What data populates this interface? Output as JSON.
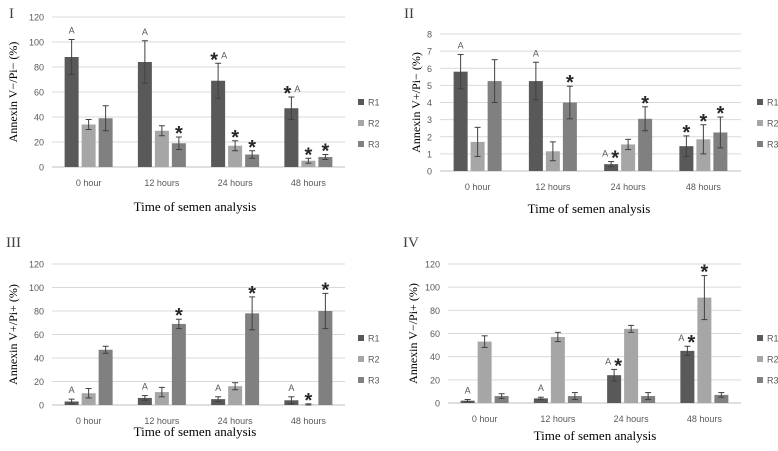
{
  "colors": {
    "R1": "#595959",
    "R2": "#a6a6a6",
    "R3": "#808080",
    "grid": "#d9d9d9",
    "axis": "#bfbfbf",
    "error": "#404040",
    "tick": "#595959"
  },
  "chart_data": [
    {
      "type": "bar",
      "panel": "I",
      "title": "",
      "xlabel": "Time of semen analysis",
      "ylabel": "Annexin V−/Pi− (%)",
      "ylim": [
        0,
        120
      ],
      "yticks": [
        0,
        20,
        40,
        60,
        80,
        100,
        120
      ],
      "grid": true,
      "legend_position": "right",
      "categories": [
        "0 hour",
        "12 hours",
        "24 hours",
        "48 hours"
      ],
      "series": [
        {
          "name": "R1",
          "values": [
            88,
            84,
            69,
            47
          ],
          "errors": [
            14,
            17,
            14,
            9
          ]
        },
        {
          "name": "R2",
          "values": [
            34,
            29,
            17,
            5
          ],
          "errors": [
            4,
            4,
            4,
            2
          ]
        },
        {
          "name": "R3",
          "values": [
            39,
            19,
            10,
            8
          ],
          "errors": [
            10,
            5,
            3,
            2
          ]
        }
      ],
      "annotations": [
        {
          "category": 0,
          "series": 0,
          "label": "A"
        },
        {
          "category": 1,
          "series": 0,
          "label": "A"
        },
        {
          "category": 1,
          "series": 2,
          "label": "*"
        },
        {
          "category": 2,
          "series": 0,
          "label": "*A"
        },
        {
          "category": 2,
          "series": 1,
          "label": "*"
        },
        {
          "category": 2,
          "series": 2,
          "label": "*"
        },
        {
          "category": 3,
          "series": 0,
          "label": "*A"
        },
        {
          "category": 3,
          "series": 1,
          "label": "*"
        },
        {
          "category": 3,
          "series": 2,
          "label": "*"
        }
      ]
    },
    {
      "type": "bar",
      "panel": "II",
      "title": "",
      "xlabel": "Time of semen analysis",
      "ylabel": "Annexin V+/Pi− (%)",
      "ylim": [
        0,
        8
      ],
      "yticks": [
        0,
        1,
        2,
        3,
        4,
        5,
        6,
        7,
        8
      ],
      "grid": true,
      "legend_position": "right",
      "categories": [
        "0 hour",
        "12 hours",
        "24 hours",
        "48 hours"
      ],
      "series": [
        {
          "name": "R1",
          "values": [
            5.8,
            5.25,
            0.4,
            1.45
          ],
          "errors": [
            1.0,
            1.1,
            0.15,
            0.6
          ]
        },
        {
          "name": "R2",
          "values": [
            1.7,
            1.15,
            1.55,
            1.85
          ],
          "errors": [
            0.85,
            0.55,
            0.3,
            0.85
          ]
        },
        {
          "name": "R3",
          "values": [
            5.25,
            4.0,
            3.05,
            2.25
          ],
          "errors": [
            1.25,
            0.95,
            0.7,
            0.9
          ]
        }
      ],
      "annotations": [
        {
          "category": 0,
          "series": 0,
          "label": "A"
        },
        {
          "category": 1,
          "series": 0,
          "label": "A"
        },
        {
          "category": 1,
          "series": 2,
          "label": "*"
        },
        {
          "category": 2,
          "series": 0,
          "label": "A*"
        },
        {
          "category": 2,
          "series": 2,
          "label": "*"
        },
        {
          "category": 3,
          "series": 0,
          "label": "*"
        },
        {
          "category": 3,
          "series": 1,
          "label": "*"
        },
        {
          "category": 3,
          "series": 2,
          "label": "*"
        }
      ]
    },
    {
      "type": "bar",
      "panel": "III",
      "title": "",
      "xlabel": "Time of semen analysis",
      "ylabel": "Annexin V+/Pi+ (%)",
      "ylim": [
        0,
        120
      ],
      "yticks": [
        0,
        20,
        40,
        60,
        80,
        100,
        120
      ],
      "grid": true,
      "legend_position": "right",
      "categories": [
        "0 hour",
        "12 hours",
        "24 hours",
        "48 hours"
      ],
      "series": [
        {
          "name": "R1",
          "values": [
            3,
            6,
            5,
            4
          ],
          "errors": [
            2,
            2,
            2,
            3
          ]
        },
        {
          "name": "R2",
          "values": [
            10,
            11,
            16,
            0.5
          ],
          "errors": [
            4,
            4,
            3,
            0.5
          ]
        },
        {
          "name": "R3",
          "values": [
            47,
            69,
            78,
            80
          ],
          "errors": [
            3,
            4,
            14,
            15
          ]
        }
      ],
      "annotations": [
        {
          "category": 0,
          "series": 0,
          "label": "A"
        },
        {
          "category": 1,
          "series": 0,
          "label": "A"
        },
        {
          "category": 1,
          "series": 2,
          "label": "*"
        },
        {
          "category": 2,
          "series": 0,
          "label": "A"
        },
        {
          "category": 2,
          "series": 2,
          "label": "*"
        },
        {
          "category": 3,
          "series": 0,
          "label": "A"
        },
        {
          "category": 3,
          "series": 1,
          "label": "*"
        },
        {
          "category": 3,
          "series": 2,
          "label": "*"
        }
      ]
    },
    {
      "type": "bar",
      "panel": "IV",
      "title": "",
      "xlabel": "Time of semen analysis",
      "ylabel": "Annexin V−/Pi+ (%)",
      "ylim": [
        0,
        120
      ],
      "yticks": [
        0,
        20,
        40,
        60,
        80,
        100,
        120
      ],
      "grid": true,
      "legend_position": "right",
      "categories": [
        "0 hour",
        "12 hours",
        "24 hours",
        "48 hours"
      ],
      "series": [
        {
          "name": "R1",
          "values": [
            2,
            4,
            24,
            45
          ],
          "errors": [
            1,
            1,
            5,
            4
          ]
        },
        {
          "name": "R2",
          "values": [
            53,
            57,
            64,
            91
          ],
          "errors": [
            5,
            4,
            3,
            19
          ]
        },
        {
          "name": "R3",
          "values": [
            6,
            6,
            6,
            7
          ],
          "errors": [
            2,
            3,
            3,
            2
          ]
        }
      ],
      "annotations": [
        {
          "category": 0,
          "series": 0,
          "label": "A"
        },
        {
          "category": 1,
          "series": 0,
          "label": "A"
        },
        {
          "category": 2,
          "series": 0,
          "label": "A*"
        },
        {
          "category": 3,
          "series": 0,
          "label": "A*"
        },
        {
          "category": 3,
          "series": 1,
          "label": "*"
        }
      ]
    }
  ]
}
